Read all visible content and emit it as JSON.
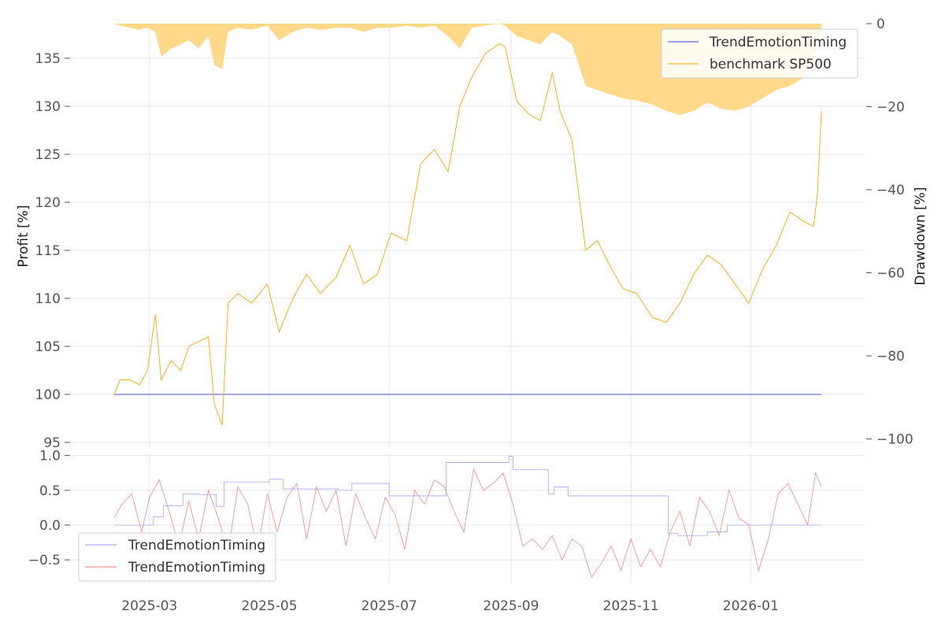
{
  "chart_data": [
    {
      "type": "line",
      "panel": "main",
      "ylabel": "Profit [%]",
      "y2label": "Drawdown [%]",
      "ylim": [
        94.5,
        138.6
      ],
      "y2lim": [
        -102,
        0
      ],
      "yticks": [
        95,
        100,
        105,
        110,
        115,
        120,
        125,
        130,
        135
      ],
      "y2ticks": [
        0,
        -20,
        -40,
        -60,
        -80,
        -100
      ],
      "y2tick_labels": [
        "0",
        "−20",
        "−40",
        "−60",
        "−80",
        "−100"
      ],
      "grid": true,
      "legend_position": "upper-right",
      "series": [
        {
          "name": "TrendEmotionTiming",
          "color": "#3a3ad6",
          "x": [
            "2025-02-11",
            "2026-02-06"
          ],
          "values": [
            100,
            100
          ]
        },
        {
          "name": "benchmark SP500",
          "color": "#f2a900",
          "x": [
            "2025-02-11",
            "2025-02-14",
            "2025-02-19",
            "2025-02-24",
            "2025-02-28",
            "2025-03-04",
            "2025-03-07",
            "2025-03-12",
            "2025-03-17",
            "2025-03-21",
            "2025-03-26",
            "2025-03-31",
            "2025-04-03",
            "2025-04-07",
            "2025-04-10",
            "2025-04-15",
            "2025-04-22",
            "2025-04-30",
            "2025-05-06",
            "2025-05-13",
            "2025-05-20",
            "2025-05-27",
            "2025-06-04",
            "2025-06-11",
            "2025-06-18",
            "2025-06-25",
            "2025-07-02",
            "2025-07-10",
            "2025-07-17",
            "2025-07-24",
            "2025-07-31",
            "2025-08-06",
            "2025-08-12",
            "2025-08-19",
            "2025-08-26",
            "2025-08-29",
            "2025-09-04",
            "2025-09-10",
            "2025-09-16",
            "2025-09-22",
            "2025-09-26",
            "2025-10-02",
            "2025-10-09",
            "2025-10-15",
            "2025-10-21",
            "2025-10-28",
            "2025-11-04",
            "2025-11-12",
            "2025-11-19",
            "2025-11-26",
            "2025-12-03",
            "2025-12-10",
            "2025-12-17",
            "2025-12-24",
            "2025-12-31",
            "2026-01-07",
            "2026-01-14",
            "2026-01-21",
            "2026-01-28",
            "2026-02-02",
            "2026-02-04",
            "2026-02-06"
          ],
          "values": [
            100,
            101.5,
            101.5,
            101,
            102.5,
            108.3,
            101.5,
            103.5,
            102.5,
            105,
            105.5,
            106,
            99,
            96.8,
            109.5,
            110.5,
            109.5,
            111.5,
            106.5,
            110,
            112.5,
            110.5,
            112.2,
            115.5,
            111.5,
            112.5,
            116.8,
            116,
            124,
            125.5,
            123.2,
            130,
            133,
            135.5,
            136.5,
            136.2,
            130.5,
            129.2,
            128.5,
            133.5,
            129.5,
            126.5,
            115,
            116,
            113.5,
            111,
            110.5,
            108,
            107.5,
            109.5,
            112.5,
            114.5,
            113.5,
            111.5,
            109.5,
            113,
            115.5,
            119,
            118,
            117.5,
            121,
            129.5
          ]
        }
      ],
      "drawdown": {
        "name": "benchmark SP500 drawdown",
        "color": "#ffd98a",
        "x": [
          "2025-02-11",
          "2025-02-14",
          "2025-02-19",
          "2025-02-24",
          "2025-02-28",
          "2025-03-04",
          "2025-03-07",
          "2025-03-12",
          "2025-03-17",
          "2025-03-21",
          "2025-03-26",
          "2025-03-31",
          "2025-04-03",
          "2025-04-07",
          "2025-04-10",
          "2025-04-15",
          "2025-04-22",
          "2025-04-30",
          "2025-05-06",
          "2025-05-13",
          "2025-05-20",
          "2025-05-27",
          "2025-06-04",
          "2025-06-11",
          "2025-06-18",
          "2025-06-25",
          "2025-07-02",
          "2025-07-10",
          "2025-07-17",
          "2025-07-24",
          "2025-07-31",
          "2025-08-06",
          "2025-08-12",
          "2025-08-19",
          "2025-08-26",
          "2025-08-29",
          "2025-09-04",
          "2025-09-10",
          "2025-09-16",
          "2025-09-22",
          "2025-09-26",
          "2025-10-02",
          "2025-10-09",
          "2025-10-15",
          "2025-10-21",
          "2025-10-28",
          "2025-11-04",
          "2025-11-12",
          "2025-11-19",
          "2025-11-26",
          "2025-12-03",
          "2025-12-10",
          "2025-12-17",
          "2025-12-24",
          "2025-12-31",
          "2026-01-07",
          "2026-01-14",
          "2026-01-21",
          "2026-01-28",
          "2026-02-02",
          "2026-02-04",
          "2026-02-06"
        ],
        "values": [
          0,
          -0.5,
          -1,
          -1.5,
          -1,
          -2,
          -8,
          -6,
          -5,
          -4,
          -6,
          -3,
          -10,
          -11,
          -2,
          -1,
          -1.5,
          -0.5,
          -4,
          -2,
          -1,
          -1.5,
          -1,
          -1,
          -2,
          -1,
          -1,
          -0.5,
          -1,
          -0.5,
          -3,
          -6,
          -1,
          -0.5,
          0,
          -0.5,
          -3,
          -4,
          -5,
          -2,
          -3,
          -5,
          -15,
          -16,
          -17,
          -18,
          -18.5,
          -19.5,
          -21,
          -22,
          -21,
          -19,
          -20.5,
          -21,
          -20,
          -18,
          -16,
          -15,
          -13,
          -8,
          -5,
          -1
        ]
      }
    },
    {
      "type": "line",
      "panel": "indicator",
      "ylim": [
        -0.85,
        1.03
      ],
      "yticks": [
        1.0,
        0.5,
        0.0,
        -0.5
      ],
      "ytick_labels": [
        "1.0",
        "0.5",
        "0.0",
        "−0.5"
      ],
      "grid": true,
      "legend_position": "lower-left",
      "series": [
        {
          "name": "TrendEmotionTiming",
          "color": "#9a9af0",
          "step": true,
          "x": [
            "2025-02-11",
            "2025-03-03",
            "2025-03-08",
            "2025-03-18",
            "2025-03-26",
            "2025-04-04",
            "2025-04-08",
            "2025-04-15",
            "2025-05-01",
            "2025-05-08",
            "2025-05-15",
            "2025-06-05",
            "2025-06-12",
            "2025-06-25",
            "2025-07-01",
            "2025-07-15",
            "2025-07-30",
            "2025-08-15",
            "2025-08-31",
            "2025-09-02",
            "2025-09-05",
            "2025-09-20",
            "2025-09-23",
            "2025-09-30",
            "2025-10-15",
            "2025-11-20",
            "2025-11-25",
            "2025-12-10",
            "2025-12-20",
            "2025-12-31",
            "2026-01-15",
            "2026-02-06"
          ],
          "values": [
            0.0,
            0.12,
            0.28,
            0.45,
            0.44,
            0.27,
            0.62,
            0.62,
            0.66,
            0.52,
            0.52,
            0.5,
            0.6,
            0.6,
            0.42,
            0.42,
            0.9,
            0.9,
            0.99,
            0.8,
            0.8,
            0.45,
            0.55,
            0.42,
            0.42,
            -0.12,
            -0.15,
            -0.1,
            0.0,
            0.0,
            0.0,
            0.0
          ]
        },
        {
          "name": "TrendEmotionTiming",
          "color": "#f07a7a",
          "x": [
            "2025-02-11",
            "2025-02-15",
            "2025-02-20",
            "2025-02-25",
            "2025-03-01",
            "2025-03-06",
            "2025-03-11",
            "2025-03-16",
            "2025-03-21",
            "2025-03-26",
            "2025-03-31",
            "2025-04-05",
            "2025-04-10",
            "2025-04-15",
            "2025-04-20",
            "2025-04-25",
            "2025-04-30",
            "2025-05-05",
            "2025-05-10",
            "2025-05-15",
            "2025-05-20",
            "2025-05-25",
            "2025-05-30",
            "2025-06-04",
            "2025-06-09",
            "2025-06-14",
            "2025-06-19",
            "2025-06-24",
            "2025-06-29",
            "2025-07-04",
            "2025-07-09",
            "2025-07-14",
            "2025-07-19",
            "2025-07-24",
            "2025-07-29",
            "2025-08-03",
            "2025-08-08",
            "2025-08-13",
            "2025-08-18",
            "2025-08-23",
            "2025-08-28",
            "2025-09-02",
            "2025-09-07",
            "2025-09-12",
            "2025-09-17",
            "2025-09-22",
            "2025-09-27",
            "2025-10-02",
            "2025-10-07",
            "2025-10-12",
            "2025-10-17",
            "2025-10-22",
            "2025-10-27",
            "2025-11-01",
            "2025-11-06",
            "2025-11-11",
            "2025-11-16",
            "2025-11-21",
            "2025-11-26",
            "2025-12-01",
            "2025-12-06",
            "2025-12-11",
            "2025-12-16",
            "2025-12-21",
            "2025-12-26",
            "2025-12-31",
            "2026-01-05",
            "2026-01-10",
            "2026-01-15",
            "2026-01-20",
            "2026-01-25",
            "2026-01-30",
            "2026-02-03",
            "2026-02-06"
          ],
          "values": [
            0.1,
            0.3,
            0.45,
            -0.1,
            0.4,
            0.65,
            0.2,
            -0.3,
            0.35,
            -0.2,
            0.5,
            0.1,
            -0.4,
            0.55,
            0.3,
            -0.35,
            0.45,
            -0.1,
            0.4,
            0.6,
            -0.2,
            0.55,
            0.2,
            0.5,
            -0.3,
            0.45,
            0.1,
            -0.2,
            0.4,
            0.15,
            -0.35,
            0.5,
            0.3,
            0.65,
            0.55,
            0.2,
            -0.1,
            0.8,
            0.5,
            0.6,
            0.75,
            0.3,
            -0.3,
            -0.2,
            -0.35,
            -0.15,
            -0.5,
            -0.2,
            -0.3,
            -0.75,
            -0.55,
            -0.3,
            -0.65,
            -0.2,
            -0.6,
            -0.35,
            -0.6,
            -0.1,
            0.2,
            -0.3,
            0.4,
            0.2,
            -0.15,
            0.5,
            0.1,
            0.0,
            -0.65,
            -0.2,
            0.45,
            0.6,
            0.3,
            0.0,
            0.75,
            0.55
          ]
        }
      ]
    }
  ],
  "xaxis": {
    "ticks": [
      "2025-03-01",
      "2025-05-01",
      "2025-07-01",
      "2025-09-01",
      "2025-11-01",
      "2026-01-01"
    ],
    "tick_labels": [
      "2025-03",
      "2025-05",
      "2025-07",
      "2025-09",
      "2025-11",
      "2026-01"
    ],
    "range": [
      "2025-01-20",
      "2026-02-28"
    ]
  }
}
